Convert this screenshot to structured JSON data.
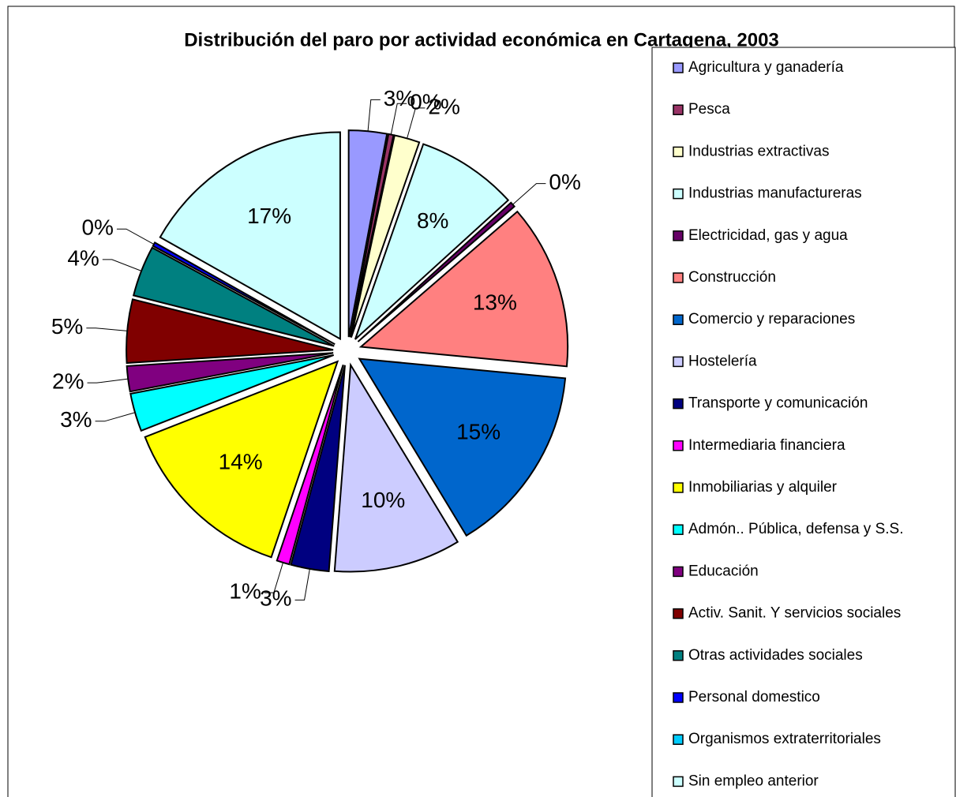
{
  "chart_data": {
    "type": "pie",
    "title": "Distribución del paro por  actividad económica en Cartagena, 2003",
    "categories": [
      "Agricultura y ganadería",
      "Pesca",
      "Industrias extractivas",
      "Industrias  manufactureras",
      "Electricidad, gas y agua",
      "Construcción",
      "Comercio y reparaciones",
      "Hostelería",
      "Transporte y comunicación",
      "Intermediaria financiera",
      "Inmobiliarias y alquiler",
      "Admón.. Pública, defensa y S.S.",
      "Educación",
      "Activ. Sanit. Y servicios sociales",
      "Otras actividades sociales",
      "Personal domestico",
      "Organismos extraterritoriales",
      "Sin empleo anterior"
    ],
    "values": [
      3,
      0.4,
      2,
      8,
      0.4,
      13,
      15,
      10,
      3,
      1,
      14,
      3,
      2,
      5,
      4,
      0.3,
      0,
      17
    ],
    "value_labels": [
      "3%",
      "0%",
      "2%",
      "8%",
      "0%",
      "13%",
      "15%",
      "10%",
      "3%",
      "1%",
      "14%",
      "3%",
      "2%",
      "5%",
      "4%",
      "0%",
      null,
      "17%"
    ],
    "colors": [
      "#9999FF",
      "#993366",
      "#FFFFCC",
      "#CCFFFF",
      "#660066",
      "#FF8080",
      "#0066CC",
      "#CCCCFF",
      "#000080",
      "#FF00FF",
      "#FFFF00",
      "#00FFFF",
      "#800080",
      "#800000",
      "#008080",
      "#0000FF",
      "#00CCFF",
      "#CCFFFF"
    ],
    "legend": "right"
  }
}
